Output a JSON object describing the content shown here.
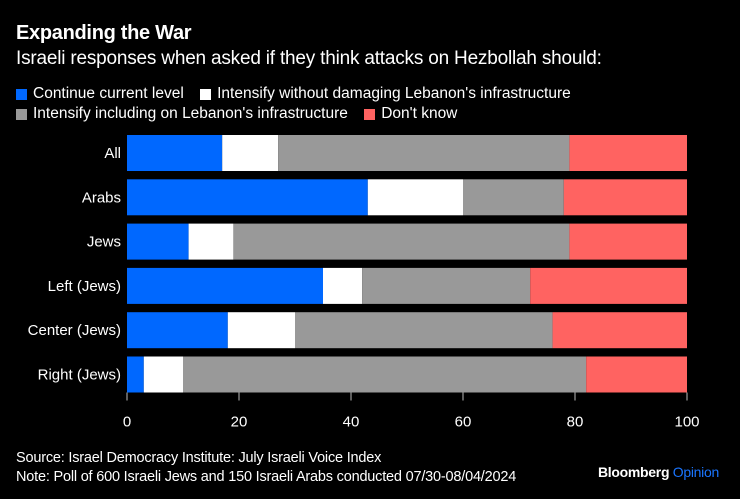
{
  "header": {
    "title": "Expanding the War",
    "subtitle": "Israeli responses when asked if they think attacks on Hezbollah should:"
  },
  "footer": {
    "source": "Source: Israel Democracy Institute: July Israeli Voice Index",
    "note": "Note: Poll of 600 Israeli Jews and 150 Israeli Arabs conducted 07/30-08/04/2024",
    "brand_name": "Bloomberg",
    "brand_suffix": "Opinion"
  },
  "colors": {
    "background": "#000000",
    "brand_accent": "#1a75ff"
  },
  "chart_data": {
    "type": "bar",
    "orientation": "horizontal",
    "stacked": true,
    "title": "Expanding the War",
    "subtitle": "Israeli responses when asked if they think attacks on Hezbollah should:",
    "xlabel": "",
    "ylabel": "",
    "xlim": [
      0,
      100
    ],
    "xticks": [
      0,
      20,
      40,
      60,
      80,
      100
    ],
    "grid": false,
    "legend_position": "top-left",
    "categories": [
      "All",
      "Arabs",
      "Jews",
      "Left (Jews)",
      "Center (Jews)",
      "Right (Jews)"
    ],
    "series": [
      {
        "name": "Continue current level",
        "color": "#0068ff",
        "values": [
          17,
          43,
          11,
          35,
          18,
          3
        ]
      },
      {
        "name": "Intensify without damaging Lebanon's infrastructure",
        "color": "#ffffff",
        "values": [
          10,
          17,
          8,
          7,
          12,
          7
        ]
      },
      {
        "name": "Intensify including on Lebanon's infrastructure",
        "color": "#999999",
        "values": [
          52,
          18,
          60,
          30,
          46,
          72
        ]
      },
      {
        "name": "Don't know",
        "color": "#ff6361",
        "values": [
          21,
          22,
          21,
          28,
          24,
          18
        ]
      }
    ]
  }
}
